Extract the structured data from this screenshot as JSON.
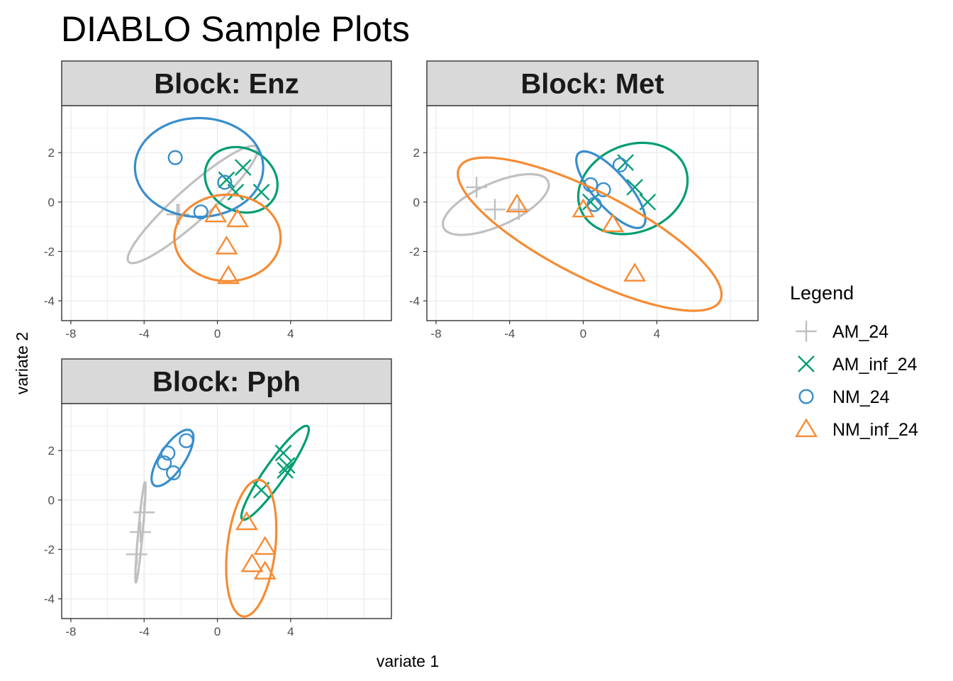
{
  "title": "DIABLO Sample Plots",
  "colors": {
    "AM_24": "#c0c0c0",
    "AM_inf_24": "#009e73",
    "NM_24": "#388ecc",
    "NM_inf_24": "#f68b33",
    "strip_bg": "#d9d9d9",
    "grid": "#ebebeb",
    "panel_border": "#333333"
  },
  "chart_data": {
    "type": "scatter",
    "title": "DIABLO Sample Plots",
    "xlabel": "variate 1",
    "ylabel": "variate 2",
    "xlim": [
      -8.5,
      9.5
    ],
    "ylim": [
      -4.8,
      3.9
    ],
    "x_ticks": [
      -8,
      -4,
      0,
      4
    ],
    "y_ticks": [
      -4,
      -2,
      0,
      2
    ],
    "grid": true,
    "legend": {
      "title": "Legend",
      "position": "right",
      "entries": [
        {
          "name": "AM_24",
          "shape": "plus",
          "color": "#c0c0c0"
        },
        {
          "name": "AM_inf_24",
          "shape": "cross",
          "color": "#009e73"
        },
        {
          "name": "NM_24",
          "shape": "circle",
          "color": "#388ecc"
        },
        {
          "name": "NM_inf_24",
          "shape": "triangle",
          "color": "#f68b33"
        }
      ]
    },
    "panels": [
      {
        "strip": "Block: Enz",
        "series": [
          {
            "name": "AM_24",
            "points": [
              [
                -2.2,
                -0.5
              ],
              [
                -2.1,
                -0.5
              ]
            ],
            "ellipse": {
              "cx": -1.35,
              "cy": -0.1,
              "rx": 4.2,
              "ry": 0.75,
              "angle_deg": 33
            }
          },
          {
            "name": "AM_inf_24",
            "points": [
              [
                0.5,
                0.9
              ],
              [
                1.0,
                0.4
              ],
              [
                1.4,
                1.4
              ],
              [
                2.4,
                0.4
              ]
            ],
            "ellipse": {
              "cx": 1.3,
              "cy": 0.9,
              "rx": 2.0,
              "ry": 1.3,
              "angle_deg": -10
            }
          },
          {
            "name": "NM_24",
            "points": [
              [
                -2.3,
                1.8
              ],
              [
                -0.9,
                -0.4
              ],
              [
                0.4,
                0.8
              ]
            ],
            "ellipse": {
              "cx": -1.0,
              "cy": 1.4,
              "rx": 3.5,
              "ry": 2.0,
              "angle_deg": 0
            }
          },
          {
            "name": "NM_inf_24",
            "points": [
              [
                -0.1,
                -0.5
              ],
              [
                1.1,
                -0.7
              ],
              [
                0.5,
                -1.8
              ],
              [
                0.6,
                -3.0
              ]
            ],
            "ellipse": {
              "cx": 0.55,
              "cy": -1.45,
              "rx": 1.75,
              "ry": 2.9,
              "angle_deg": 90
            }
          }
        ]
      },
      {
        "strip": "Block: Met",
        "series": [
          {
            "name": "AM_24",
            "points": [
              [
                -5.8,
                0.6
              ],
              [
                -4.8,
                -0.3
              ],
              [
                -3.5,
                -0.3
              ]
            ],
            "ellipse": {
              "cx": -4.75,
              "cy": -0.1,
              "rx": 3.0,
              "ry": 0.9,
              "angle_deg": 17
            }
          },
          {
            "name": "AM_inf_24",
            "points": [
              [
                0.4,
                0.0
              ],
              [
                2.3,
                1.6
              ],
              [
                2.8,
                0.6
              ],
              [
                3.5,
                0.0
              ]
            ],
            "ellipse": {
              "cx": 2.7,
              "cy": 0.55,
              "rx": 3.0,
              "ry": 1.8,
              "angle_deg": 10
            }
          },
          {
            "name": "NM_24",
            "points": [
              [
                0.4,
                0.7
              ],
              [
                1.1,
                0.5
              ],
              [
                0.6,
                -0.1
              ],
              [
                2.0,
                1.5
              ]
            ],
            "ellipse": {
              "cx": 1.5,
              "cy": 0.5,
              "rx": 2.3,
              "ry": 0.8,
              "angle_deg": -38
            }
          },
          {
            "name": "NM_inf_24",
            "points": [
              [
                -3.6,
                -0.1
              ],
              [
                0.0,
                -0.3
              ],
              [
                1.6,
                -0.9
              ],
              [
                2.8,
                -2.9
              ]
            ],
            "ellipse": {
              "cx": 0.35,
              "cy": -1.3,
              "rx": 7.6,
              "ry": 1.8,
              "angle_deg": -20
            }
          }
        ]
      },
      {
        "strip": "Block: Pph",
        "series": [
          {
            "name": "AM_24",
            "points": [
              [
                -4.0,
                -0.5
              ],
              [
                -4.2,
                -1.3
              ],
              [
                -4.4,
                -2.2
              ]
            ],
            "ellipse": {
              "cx": -4.2,
              "cy": -1.3,
              "rx": 2.05,
              "ry": 0.12,
              "angle_deg": 83
            }
          },
          {
            "name": "AM_inf_24",
            "points": [
              [
                2.4,
                0.4
              ],
              [
                3.6,
                1.9
              ],
              [
                3.8,
                1.4
              ],
              [
                3.7,
                1.2
              ]
            ],
            "ellipse": {
              "cx": 3.15,
              "cy": 1.1,
              "rx": 2.6,
              "ry": 0.5,
              "angle_deg": 46
            }
          },
          {
            "name": "NM_24",
            "points": [
              [
                -2.7,
                1.9
              ],
              [
                -1.7,
                2.4
              ],
              [
                -2.9,
                1.5
              ],
              [
                -2.4,
                1.1
              ]
            ],
            "ellipse": {
              "cx": -2.45,
              "cy": 1.7,
              "rx": 1.5,
              "ry": 0.6,
              "angle_deg": 45
            }
          },
          {
            "name": "NM_inf_24",
            "points": [
              [
                1.6,
                -0.9
              ],
              [
                1.9,
                -2.6
              ],
              [
                2.6,
                -1.9
              ],
              [
                2.6,
                -2.9
              ]
            ],
            "ellipse": {
              "cx": 1.85,
              "cy": -1.95,
              "rx": 2.8,
              "ry": 1.3,
              "angle_deg": 80
            }
          }
        ]
      }
    ]
  }
}
